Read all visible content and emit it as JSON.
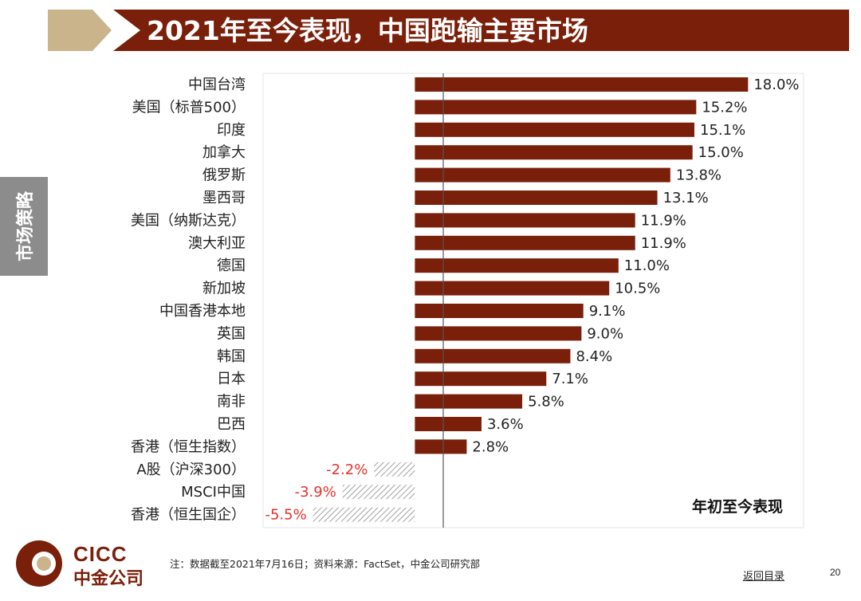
{
  "slide": {
    "title": "2021年至今表现，中国跑输主要市场",
    "side_tab": "市场策略",
    "note": "注：数据截至2021年7月16日；资料来源：FactSet，中金公司研究部",
    "back_link": "返回目录",
    "page_number": "20"
  },
  "logo": {
    "en": "CICC",
    "cn": "中金公司"
  },
  "colors": {
    "bar": "#7a1f0a",
    "negative_text": "#e8302a",
    "accent_tan": "#c9b48c",
    "side_tab": "#8c8c8c"
  },
  "chart_data": {
    "type": "bar",
    "orientation": "horizontal",
    "title": "年初至今表现",
    "legend_position": "bottom-right",
    "xlim": [
      -8.2,
      21.0
    ],
    "categories": [
      "中国台湾",
      "美国（标普500）",
      "印度",
      "加拿大",
      "俄罗斯",
      "墨西哥",
      "美国（纳斯达克）",
      "澳大利亚",
      "德国",
      "新加坡",
      "中国香港本地",
      "英国",
      "韩国",
      "日本",
      "南非",
      "巴西",
      "香港（恒生指数）",
      "A股（沪深300）",
      "MSCI中国",
      "香港（恒生国企）"
    ],
    "values": [
      18.0,
      15.2,
      15.1,
      15.0,
      13.8,
      13.1,
      11.9,
      11.9,
      11.0,
      10.5,
      9.1,
      9.0,
      8.4,
      7.1,
      5.8,
      3.6,
      2.8,
      -2.2,
      -3.9,
      -5.5
    ],
    "value_labels": [
      "18.0%",
      "15.2%",
      "15.1%",
      "15.0%",
      "13.8%",
      "13.1%",
      "11.9%",
      "11.9%",
      "11.0%",
      "10.5%",
      "9.1%",
      "9.0%",
      "8.4%",
      "7.1%",
      "5.8%",
      "3.6%",
      "2.8%",
      "-2.2%",
      "-3.9%",
      "-5.5%"
    ],
    "negative_style": "hatched"
  }
}
